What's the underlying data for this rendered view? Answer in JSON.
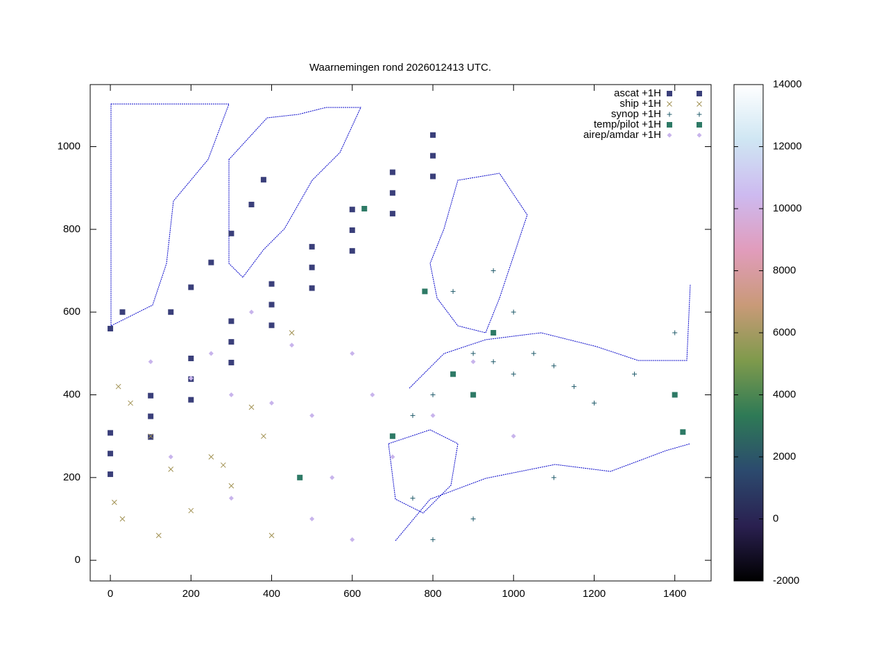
{
  "chart_data": {
    "type": "scatter",
    "title": "Waarnemingen rond 2026012413 UTC.",
    "xlim": [
      -50,
      1490
    ],
    "ylim": [
      -50,
      1150
    ],
    "xticks": [
      0,
      200,
      400,
      600,
      800,
      1000,
      1200,
      1400
    ],
    "yticks": [
      0,
      200,
      400,
      600,
      800,
      1000
    ],
    "cblim": [
      -2000,
      14000
    ],
    "cbticks": [
      -2000,
      0,
      2000,
      4000,
      6000,
      8000,
      10000,
      12000,
      14000
    ],
    "colormap": [
      "#000000",
      "#2a2050",
      "#2c4a6e",
      "#2e7a56",
      "#7f9a4c",
      "#c99a78",
      "#e19cbc",
      "#cdbaf0",
      "#cfe6f3",
      "#ffffff"
    ],
    "series": [
      {
        "name": "ascat +1H",
        "color": "#3a3f7a",
        "marker": "square",
        "x": [
          0,
          100,
          200,
          300,
          400,
          500,
          600,
          700,
          800,
          0,
          100,
          200,
          300,
          400,
          500,
          600,
          700,
          800,
          0,
          100,
          200,
          300,
          400,
          500,
          600,
          700,
          800,
          150,
          200,
          250,
          300,
          350,
          380,
          0,
          30
        ],
        "y": [
          208,
          298,
          388,
          478,
          568,
          658,
          748,
          838,
          928,
          258,
          348,
          438,
          528,
          618,
          708,
          798,
          888,
          978,
          308,
          398,
          488,
          578,
          668,
          758,
          848,
          938,
          1028,
          600,
          660,
          720,
          790,
          860,
          920,
          560,
          600
        ]
      },
      {
        "name": "ship +1H",
        "color": "#a09050",
        "marker": "x",
        "x": [
          10,
          20,
          50,
          100,
          150,
          200,
          250,
          300,
          350,
          400,
          450,
          30,
          280,
          380,
          120
        ],
        "y": [
          140,
          420,
          380,
          300,
          220,
          120,
          250,
          180,
          370,
          60,
          550,
          100,
          230,
          300,
          60
        ]
      },
      {
        "name": "synop +1H",
        "color": "#1f5a6a",
        "marker": "plus",
        "x": [
          700,
          750,
          800,
          850,
          900,
          950,
          1000,
          1050,
          1100,
          1150,
          1200,
          1300,
          1400,
          900,
          800,
          750,
          1000,
          850,
          950,
          1100
        ],
        "y": [
          300,
          350,
          400,
          450,
          500,
          480,
          450,
          500,
          470,
          420,
          380,
          450,
          550,
          100,
          50,
          150,
          600,
          650,
          700,
          200
        ]
      },
      {
        "name": "temp/pilot +1H",
        "color": "#2e7a66",
        "marker": "square",
        "x": [
          850,
          950,
          1400,
          900,
          700,
          470,
          1420,
          780,
          630
        ],
        "y": [
          450,
          550,
          400,
          400,
          300,
          200,
          310,
          650,
          850
        ]
      },
      {
        "name": "airep/amdar +1H",
        "color": "#c8b4ec",
        "marker": "diamond",
        "x": [
          100,
          200,
          300,
          400,
          500,
          600,
          550,
          650,
          700,
          800,
          900,
          350,
          450,
          250,
          1000,
          600,
          500,
          300,
          150
        ],
        "y": [
          480,
          440,
          400,
          380,
          350,
          500,
          200,
          400,
          250,
          350,
          480,
          600,
          520,
          500,
          300,
          50,
          100,
          150,
          250
        ]
      }
    ]
  }
}
